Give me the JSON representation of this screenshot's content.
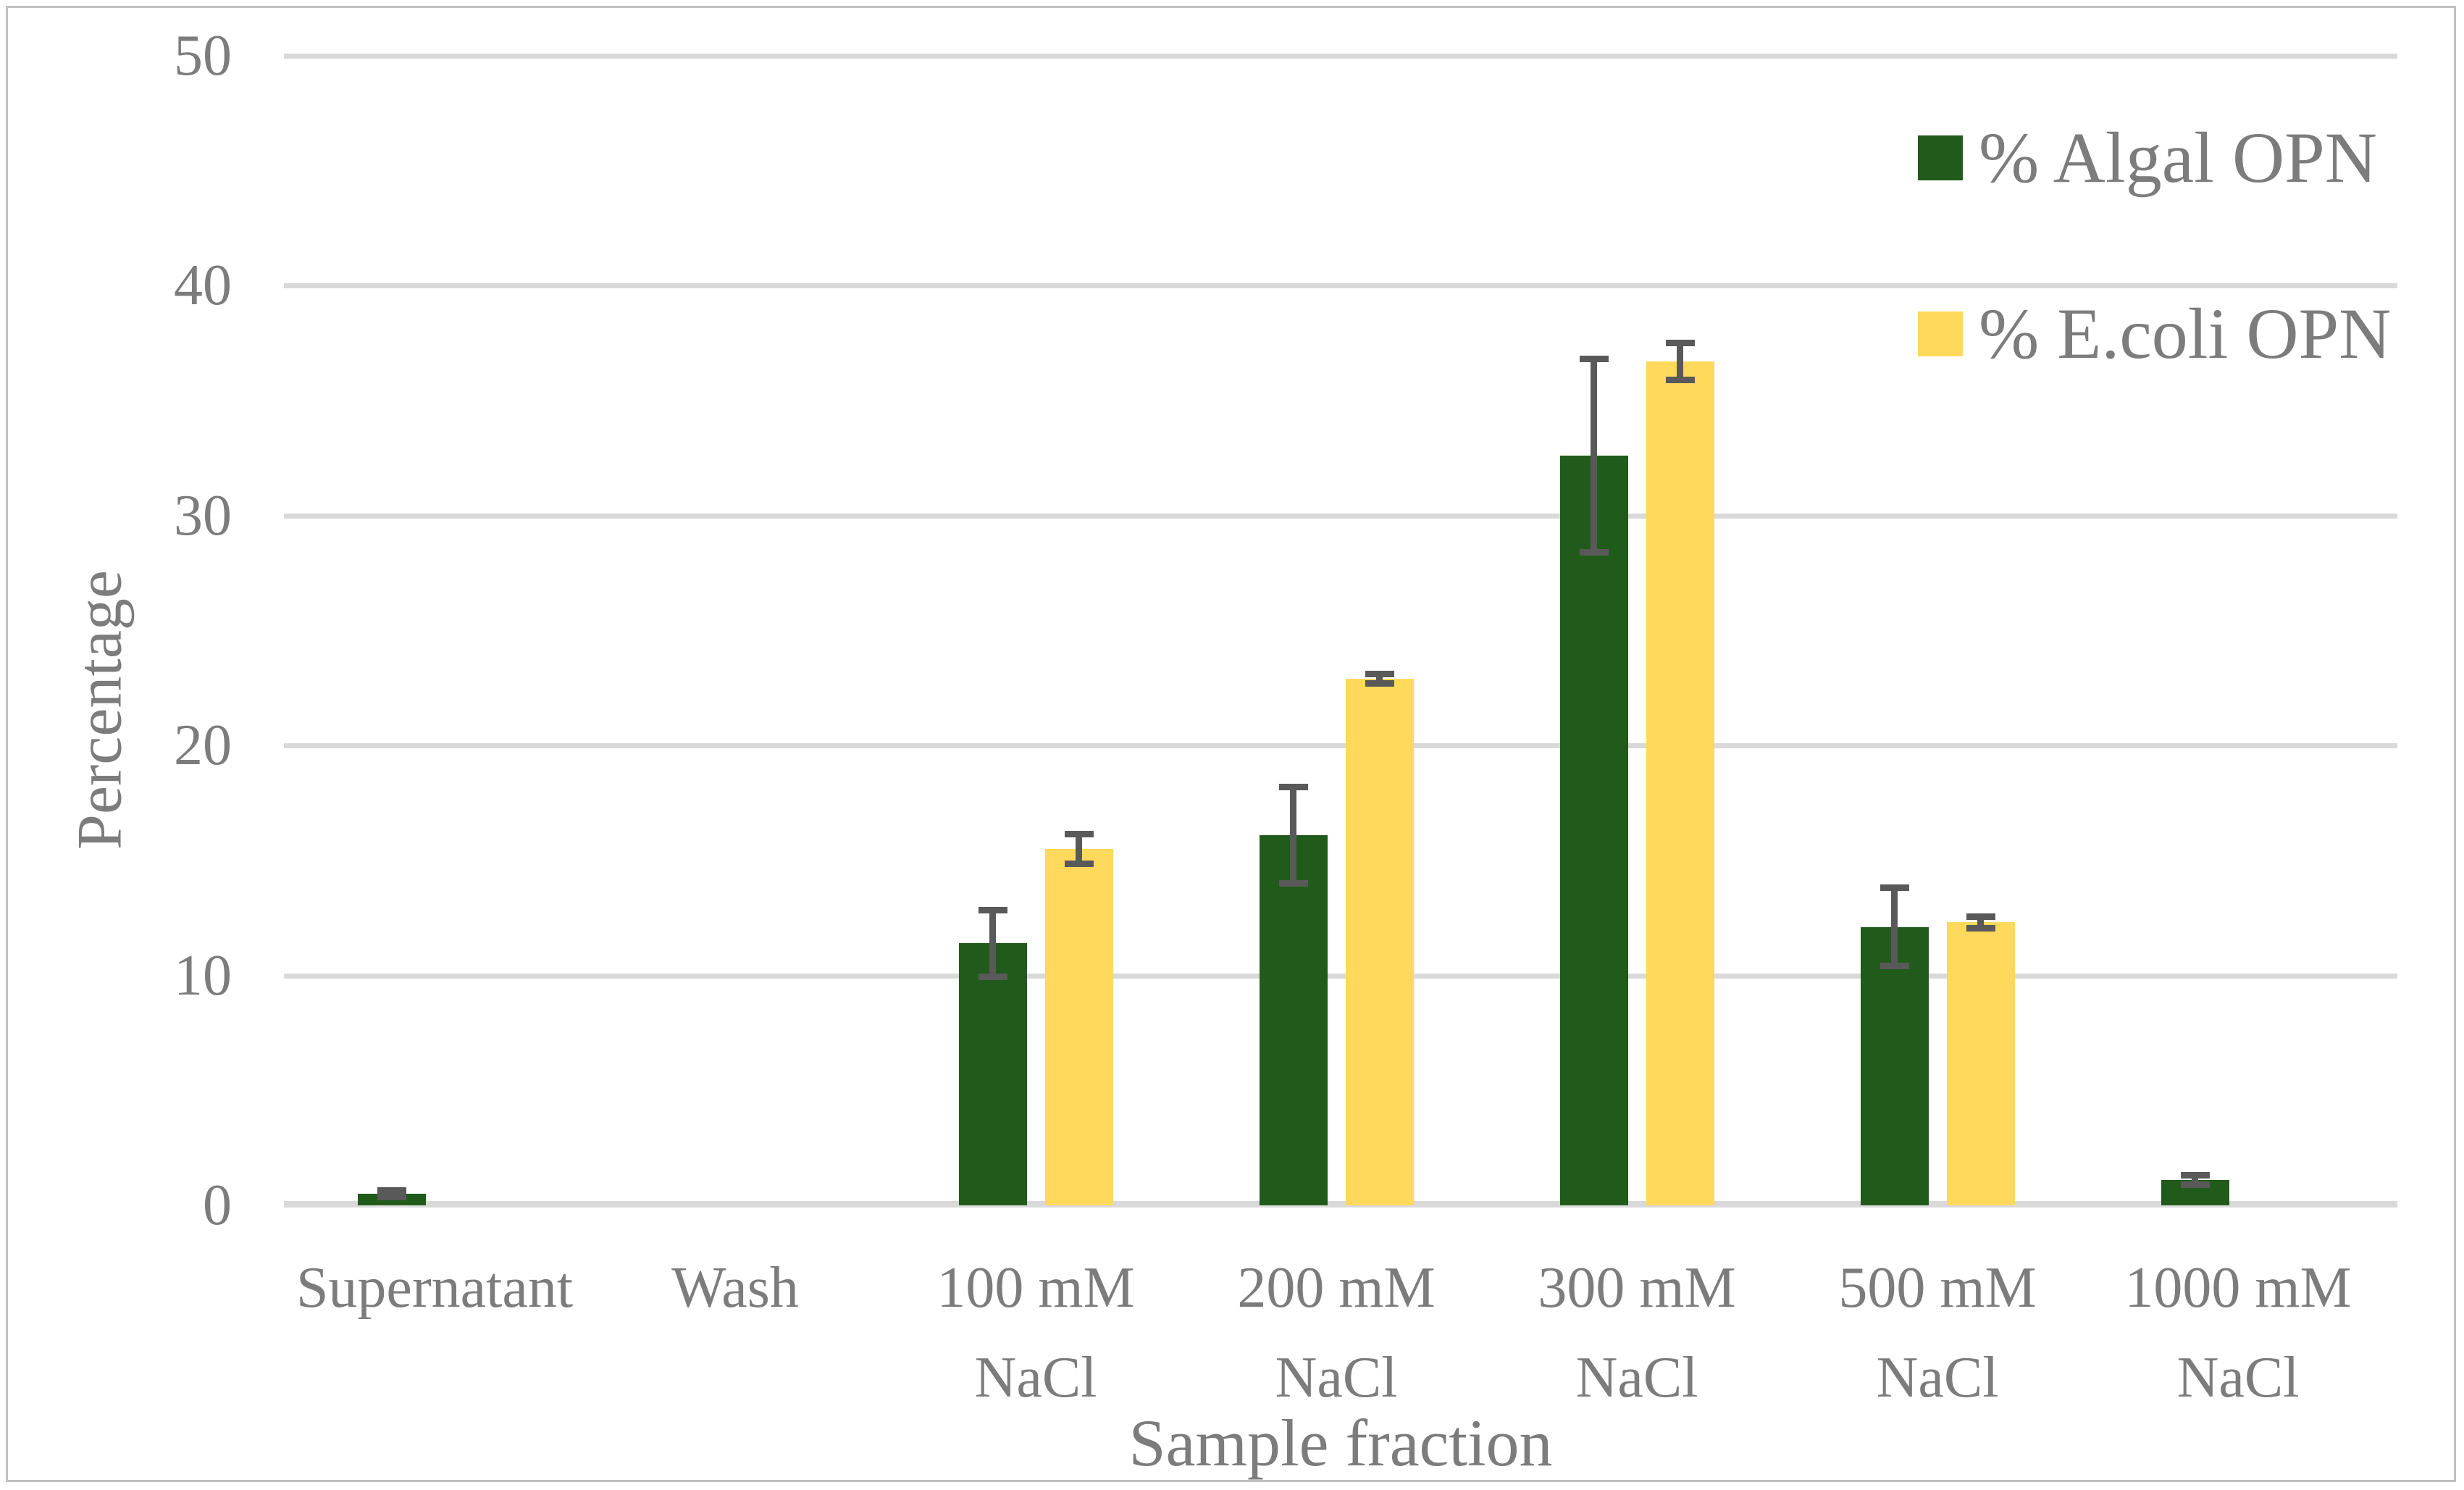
{
  "chart_data": {
    "type": "bar",
    "title": "",
    "xlabel": "Sample fraction",
    "ylabel": "Percentage",
    "categories": [
      "Supernatant",
      "Wash",
      "100 mM NaCl",
      "200 mM NaCl",
      "300 mM NaCl",
      "500 mM NaCl",
      "1000 mM NaCl"
    ],
    "category_label_lines": [
      [
        "Supernatant"
      ],
      [
        "Wash"
      ],
      [
        "100 mM",
        "NaCl"
      ],
      [
        "200 mM",
        "NaCl"
      ],
      [
        "300 mM",
        "NaCl"
      ],
      [
        "500 mM",
        "NaCl"
      ],
      [
        "1000 mM",
        "NaCl"
      ]
    ],
    "yticks": [
      0,
      10,
      20,
      30,
      40,
      50
    ],
    "ylim": [
      0,
      50
    ],
    "grid": "horizontal",
    "legend_position": "top-right",
    "series": [
      {
        "name": "% Algal OPN",
        "color": "#215B1B",
        "values": [
          0.5,
          0,
          11.4,
          16.1,
          32.6,
          12.1,
          1.1
        ],
        "errors": [
          0.15,
          null,
          1.45,
          2.1,
          4.2,
          1.7,
          0.2
        ]
      },
      {
        "name": "% E.coli OPN",
        "color": "#FFD95C",
        "values": [
          0,
          0,
          15.5,
          22.9,
          36.7,
          12.3,
          0
        ],
        "errors": [
          null,
          null,
          0.65,
          0.2,
          0.8,
          0.25,
          null
        ]
      }
    ]
  },
  "colors": {
    "text": "#7C7C7C",
    "gridline": "#D9D9D9",
    "axis_line": "#D9D9D9",
    "error_bar": "#595959",
    "border": "#BFBFBF",
    "background": "#FFFFFF"
  }
}
